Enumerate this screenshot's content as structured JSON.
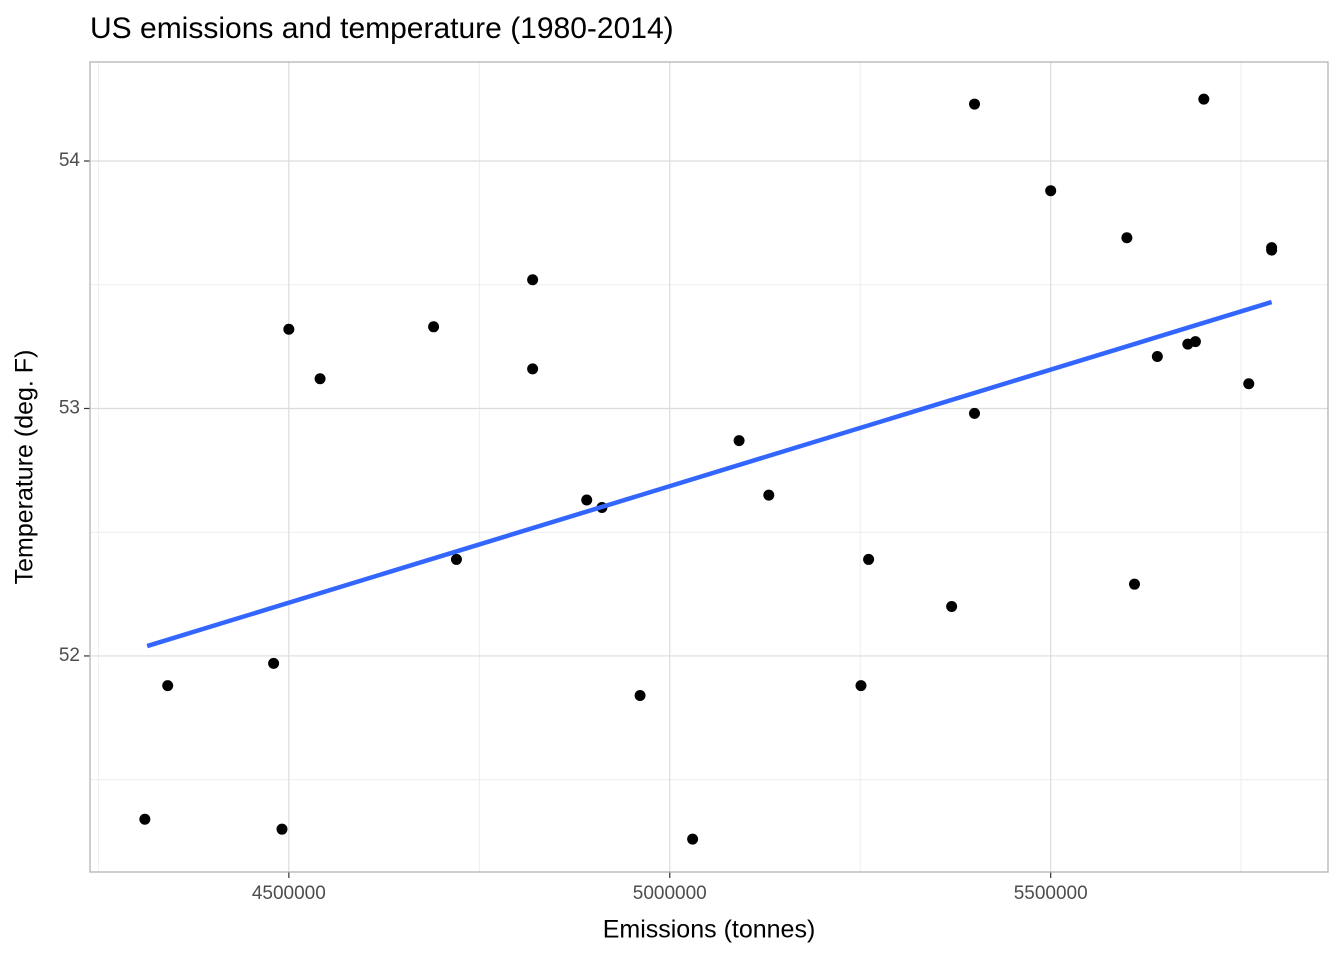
{
  "chart_data": {
    "type": "scatter",
    "title": "US emissions and temperature (1980-2014)",
    "xlabel": "Emissions (tonnes)",
    "ylabel": "Temperature (deg. F)",
    "xlim": [
      4239000,
      5864000
    ],
    "ylim": [
      51.127,
      54.4
    ],
    "xticks": [
      4500000,
      5000000,
      5500000
    ],
    "yticks": [
      52,
      53,
      54
    ],
    "grid": true,
    "series": [
      {
        "name": "observations",
        "color": "#000000",
        "x": [
          4311000,
          4341000,
          4480000,
          4491000,
          4500000,
          4541000,
          4690000,
          4720000,
          4820000,
          4820000,
          4891000,
          4911000,
          4961000,
          5030000,
          5091000,
          5130000,
          5251000,
          5261000,
          5370000,
          5400000,
          5400000,
          5500000,
          5600000,
          5610000,
          5640000,
          5680000,
          5690000,
          5701000,
          5760000,
          5790000,
          5790000
        ],
        "values": [
          51.34,
          51.88,
          51.97,
          51.3,
          53.32,
          53.12,
          53.33,
          52.39,
          53.52,
          53.16,
          52.63,
          52.6,
          51.84,
          51.26,
          52.87,
          52.65,
          51.88,
          52.39,
          52.2,
          54.23,
          52.98,
          53.88,
          53.69,
          52.29,
          53.21,
          53.26,
          53.27,
          54.25,
          53.1,
          53.65,
          53.64
        ]
      }
    ],
    "trend": {
      "color": "#3366ff",
      "x": [
        4314000,
        5790000
      ],
      "values": [
        52.04,
        53.43
      ]
    }
  }
}
